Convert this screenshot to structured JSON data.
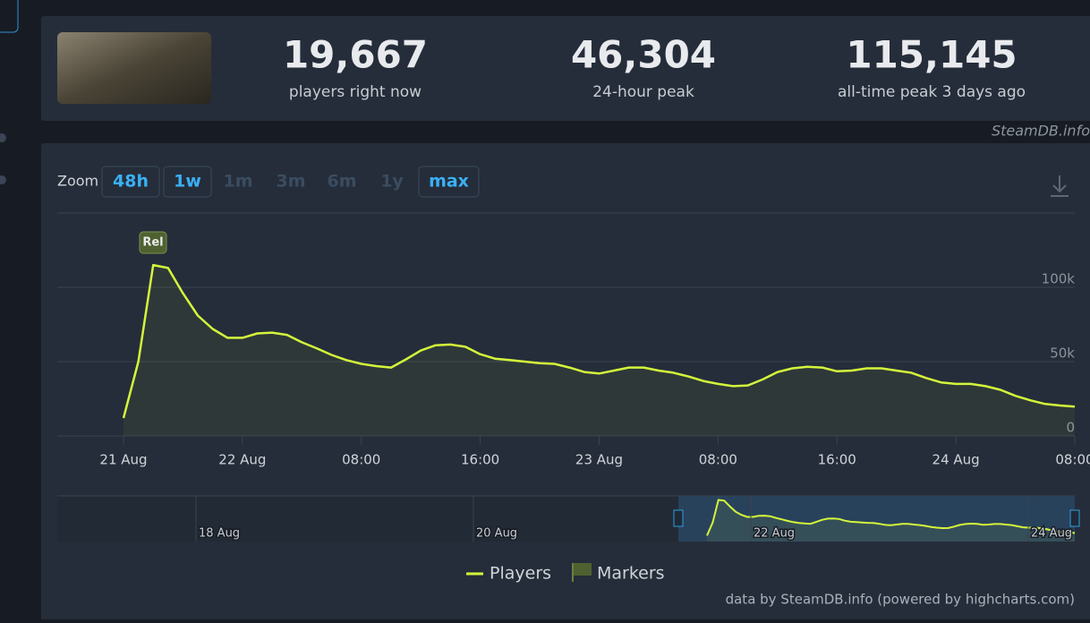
{
  "header": {
    "stats": [
      {
        "value": "19,667",
        "label": "players right now"
      },
      {
        "value": "46,304",
        "label": "24-hour peak"
      },
      {
        "value": "115,145",
        "label": "all-time peak 3 days ago"
      }
    ]
  },
  "watermark": "SteamDB.info",
  "zoom": {
    "label": "Zoom",
    "buttons": [
      {
        "label": "48h",
        "enabled": true
      },
      {
        "label": "1w",
        "enabled": true
      },
      {
        "label": "1m",
        "enabled": false
      },
      {
        "label": "3m",
        "enabled": false
      },
      {
        "label": "6m",
        "enabled": false
      },
      {
        "label": "1y",
        "enabled": false
      },
      {
        "label": "max",
        "enabled": true
      }
    ]
  },
  "chart_data": {
    "type": "line",
    "categories": [
      "21 Aug",
      null,
      null,
      null,
      null,
      null,
      null,
      null,
      "22 Aug",
      null,
      null,
      null,
      null,
      null,
      null,
      null,
      "08:00",
      null,
      null,
      null,
      null,
      null,
      null,
      null,
      "16:00",
      null,
      null,
      null,
      null,
      null,
      null,
      null,
      "23 Aug",
      null,
      null,
      null,
      null,
      null,
      null,
      null,
      "08:00",
      null,
      null,
      null,
      null,
      null,
      null,
      null,
      "16:00",
      null,
      null,
      null,
      null,
      null,
      null,
      null,
      "24 Aug",
      null,
      null,
      null,
      null,
      null,
      null,
      null,
      "08:00"
    ],
    "series": [
      {
        "name": "Players",
        "color": "#d4f53a",
        "values": [
          12000,
          50000,
          115000,
          113000,
          96000,
          81000,
          72000,
          66000,
          66000,
          69000,
          69500,
          68000,
          63000,
          59000,
          54500,
          51000,
          48500,
          47000,
          46000,
          51500,
          57500,
          61000,
          61500,
          60000,
          55000,
          52000,
          51000,
          50000,
          49000,
          48500,
          46000,
          43000,
          42000,
          44000,
          46000,
          46000,
          44000,
          42500,
          40000,
          37000,
          35000,
          33500,
          34000,
          38000,
          43000,
          45500,
          46500,
          46000,
          43500,
          44000,
          45500,
          45500,
          44000,
          42500,
          39000,
          36000,
          35000,
          35000,
          33500,
          31000,
          27000,
          24000,
          21500,
          20500,
          19700
        ]
      }
    ],
    "markers": {
      "name": "Markers",
      "color": "#4f6130",
      "labels": [
        "Rel"
      ]
    },
    "ylim": [
      0,
      150000
    ],
    "yticks": [
      0,
      {
        "value": 50000,
        "label": "50k"
      },
      {
        "value": 100000,
        "label": "100k"
      }
    ],
    "grid": true
  },
  "navigator": {
    "labels": [
      "18 Aug",
      "20 Aug",
      "22 Aug",
      "24 Aug"
    ]
  },
  "credit": "data by SteamDB.info (powered by highcharts.com)"
}
